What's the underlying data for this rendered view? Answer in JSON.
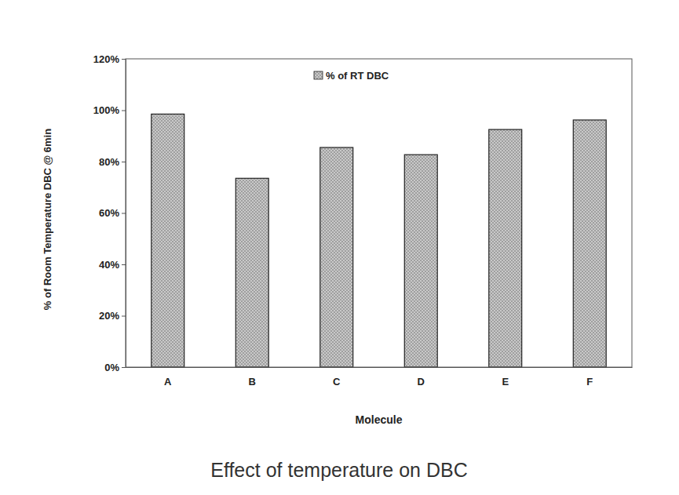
{
  "chart_data": {
    "type": "bar",
    "title": "Effect of temperature on DBC",
    "x_label": "Molecule",
    "y_label": "% of Room Temperature DBC @ 6min",
    "categories": [
      "A",
      "B",
      "C",
      "D",
      "E",
      "F"
    ],
    "series": [
      {
        "name": "% of RT DBC",
        "color": "#c9c9c9",
        "values": [
          98.5,
          73.5,
          85.5,
          82.7,
          92.5,
          96.2
        ]
      }
    ],
    "ylim": [
      0,
      120
    ],
    "yticks": [
      {
        "value": 0,
        "label": "0%"
      },
      {
        "value": 20,
        "label": "20%"
      },
      {
        "value": 40,
        "label": "40%"
      },
      {
        "value": 60,
        "label": "60%"
      },
      {
        "value": 80,
        "label": "80%"
      },
      {
        "value": 100,
        "label": "100%"
      },
      {
        "value": 120,
        "label": "120%"
      }
    ],
    "grid": false,
    "legend": "top"
  }
}
